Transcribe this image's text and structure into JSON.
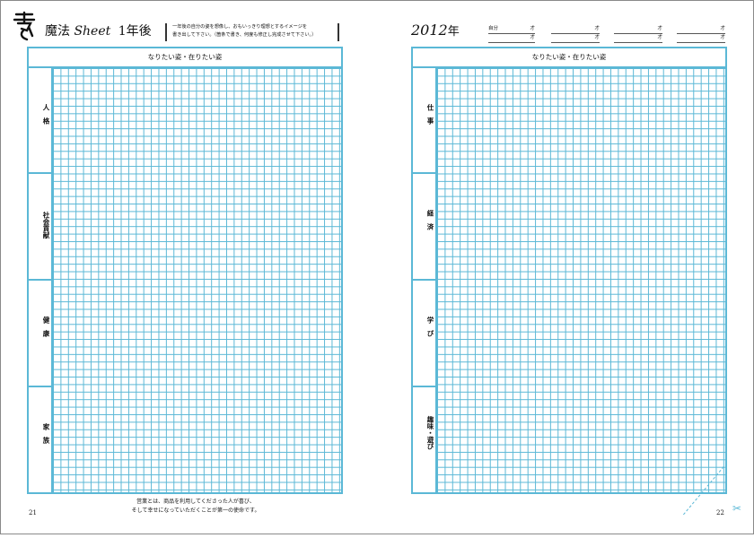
{
  "left_page": {
    "title_jp": "魔法",
    "title_en": "Sheet",
    "title_suffix": "1年後",
    "instruction_line1": "一年後の自分の姿を想像し、おもいっきり理想とするイメージを",
    "instruction_line2": "書き出して下さい。（箇条で書き、何度も修正し完成させて下さい。）",
    "grid_header": "なりたい姿・在りたい姿",
    "categories": [
      "人　格",
      "社会貢献",
      "健　康",
      "家　族"
    ],
    "footer_line1": "営業とは、商品を利用してくださった人が喜び、",
    "footer_line2": "そして幸せになっていただくことが第一の使命です。",
    "page_number": "21"
  },
  "right_page": {
    "year_number": "2012",
    "year_unit": "年",
    "age_rows": [
      {
        "name": "自分",
        "unit": "才"
      },
      {
        "name": "",
        "unit": "才"
      },
      {
        "name": "",
        "unit": "才"
      },
      {
        "name": "",
        "unit": "才"
      },
      {
        "name": "",
        "unit": "才"
      },
      {
        "name": "",
        "unit": "才"
      },
      {
        "name": "",
        "unit": "才"
      },
      {
        "name": "",
        "unit": "才"
      }
    ],
    "grid_header": "なりたい姿・在りたい姿",
    "categories": [
      "仕　事",
      "経　済",
      "学　び",
      "趣味・遊び"
    ],
    "page_number": "22"
  },
  "colors": {
    "grid_line": "#5bb8d6",
    "border": "#8a8a8a"
  }
}
